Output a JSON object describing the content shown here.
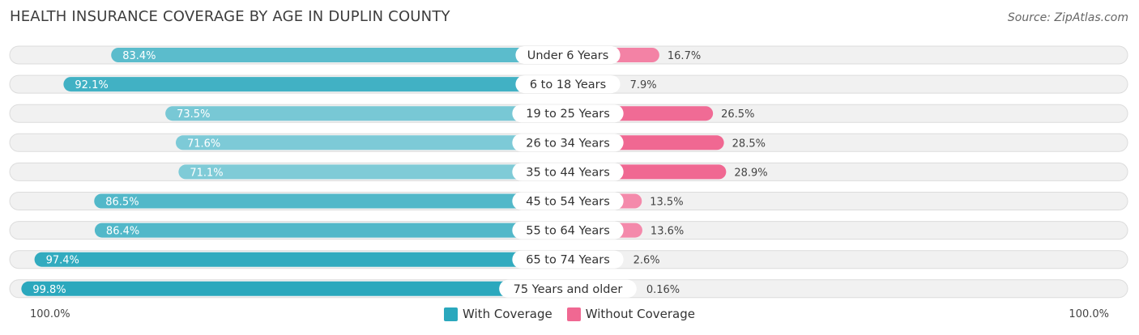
{
  "header": {
    "title": "HEALTH INSURANCE COVERAGE BY AGE IN DUPLIN COUNTY",
    "source": "Source: ZipAtlas.com"
  },
  "colors": {
    "with_coverage_strong": "#2aa8bd",
    "with_coverage_light": "#82ccd8",
    "without_coverage_strong": "#f06892",
    "without_coverage_light": "#f7a9c2",
    "row_bg": "#f1f1f1",
    "row_border": "#dcdcdc"
  },
  "axis": {
    "left_label": "100.0%",
    "right_label": "100.0%"
  },
  "legend": {
    "with_label": "With Coverage",
    "without_label": "Without Coverage"
  },
  "chart_data": {
    "type": "bar",
    "orientation": "horizontal-diverging",
    "title": "HEALTH INSURANCE COVERAGE BY AGE IN DUPLIN COUNTY",
    "categories": [
      "Under 6 Years",
      "6 to 18 Years",
      "19 to 25 Years",
      "26 to 34 Years",
      "35 to 44 Years",
      "45 to 54 Years",
      "55 to 64 Years",
      "65 to 74 Years",
      "75 Years and older"
    ],
    "series": [
      {
        "name": "With Coverage",
        "values": [
          83.4,
          92.1,
          73.5,
          71.6,
          71.1,
          86.5,
          86.4,
          97.4,
          99.8
        ],
        "labels": [
          "83.4%",
          "92.1%",
          "73.5%",
          "71.6%",
          "71.1%",
          "86.5%",
          "86.4%",
          "97.4%",
          "99.8%"
        ]
      },
      {
        "name": "Without Coverage",
        "values": [
          16.7,
          7.9,
          26.5,
          28.5,
          28.9,
          13.5,
          13.6,
          2.6,
          0.16
        ],
        "labels": [
          "16.7%",
          "7.9%",
          "26.5%",
          "28.5%",
          "28.9%",
          "13.5%",
          "13.6%",
          "2.6%",
          "0.16%"
        ]
      }
    ],
    "xlim": [
      -100,
      100
    ],
    "legend_position": "bottom-center"
  }
}
